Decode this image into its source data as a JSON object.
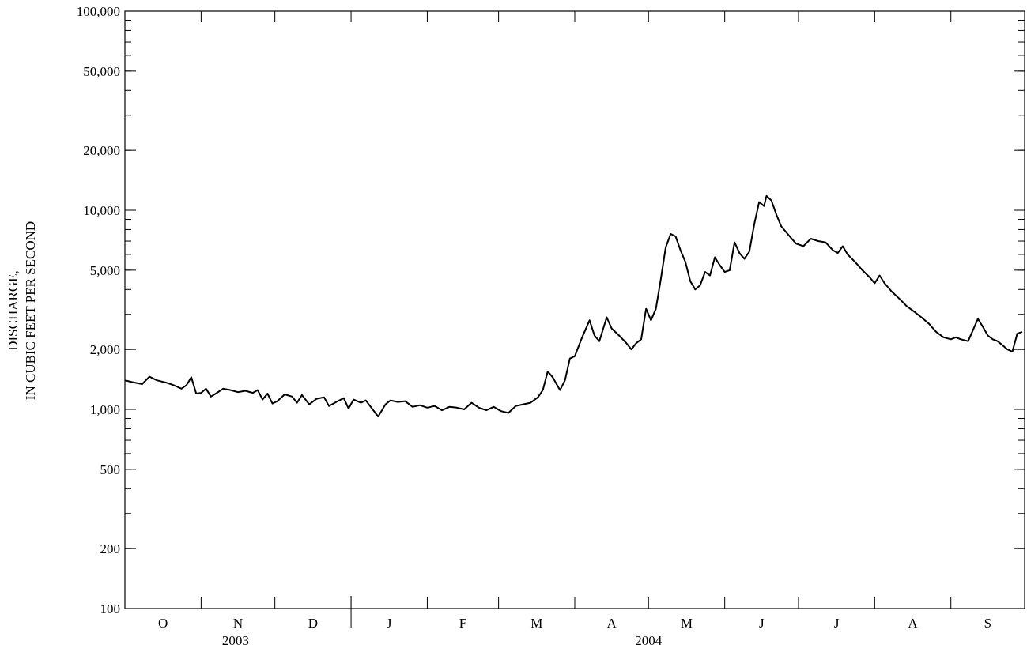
{
  "chart_data": {
    "type": "line",
    "title": "",
    "ylabel": "DISCHARGE, IN CUBIC FEET PER SECOND",
    "ylabel_lines": [
      "DISCHARGE,",
      "IN CUBIC FEET PER SECOND"
    ],
    "yscale": "log",
    "ylim": [
      100,
      100000
    ],
    "xlim": [
      "2003-10-01",
      "2004-09-30"
    ],
    "grid": false,
    "yticks": [
      {
        "value": 100,
        "label": "100"
      },
      {
        "value": 200,
        "label": "200"
      },
      {
        "value": 500,
        "label": "500"
      },
      {
        "value": 1000,
        "label": "1,000"
      },
      {
        "value": 2000,
        "label": "2,000"
      },
      {
        "value": 5000,
        "label": "5,000"
      },
      {
        "value": 10000,
        "label": "10,000"
      },
      {
        "value": 20000,
        "label": "20,000"
      },
      {
        "value": 50000,
        "label": "50,000"
      },
      {
        "value": 100000,
        "label": "100,000"
      }
    ],
    "months": [
      {
        "label": "O",
        "start": "2003-10-01"
      },
      {
        "label": "N",
        "start": "2003-11-01"
      },
      {
        "label": "D",
        "start": "2003-12-01"
      },
      {
        "label": "J",
        "start": "2004-01-01"
      },
      {
        "label": "F",
        "start": "2004-02-01"
      },
      {
        "label": "M",
        "start": "2004-03-01"
      },
      {
        "label": "A",
        "start": "2004-04-01"
      },
      {
        "label": "M",
        "start": "2004-05-01"
      },
      {
        "label": "J",
        "start": "2004-06-01"
      },
      {
        "label": "J",
        "start": "2004-07-01"
      },
      {
        "label": "A",
        "start": "2004-08-01"
      },
      {
        "label": "S",
        "start": "2004-09-01"
      }
    ],
    "year_labels": [
      {
        "label": "2003",
        "center": "2003-11-15"
      },
      {
        "label": "2004",
        "center": "2004-05-01"
      }
    ],
    "year_divider": "2004-01-01",
    "series": [
      {
        "color": "#000000",
        "points": [
          [
            "2003-10-01",
            1400
          ],
          [
            "2003-10-04",
            1370
          ],
          [
            "2003-10-08",
            1340
          ],
          [
            "2003-10-11",
            1460
          ],
          [
            "2003-10-14",
            1400
          ],
          [
            "2003-10-18",
            1360
          ],
          [
            "2003-10-21",
            1320
          ],
          [
            "2003-10-24",
            1270
          ],
          [
            "2003-10-26",
            1320
          ],
          [
            "2003-10-28",
            1450
          ],
          [
            "2003-10-30",
            1200
          ],
          [
            "2003-11-01",
            1210
          ],
          [
            "2003-11-03",
            1270
          ],
          [
            "2003-11-05",
            1160
          ],
          [
            "2003-11-07",
            1200
          ],
          [
            "2003-11-10",
            1270
          ],
          [
            "2003-11-13",
            1250
          ],
          [
            "2003-11-16",
            1220
          ],
          [
            "2003-11-19",
            1240
          ],
          [
            "2003-11-22",
            1210
          ],
          [
            "2003-11-24",
            1250
          ],
          [
            "2003-11-26",
            1120
          ],
          [
            "2003-11-28",
            1200
          ],
          [
            "2003-11-30",
            1070
          ],
          [
            "2003-12-02",
            1100
          ],
          [
            "2003-12-05",
            1190
          ],
          [
            "2003-12-08",
            1160
          ],
          [
            "2003-12-10",
            1080
          ],
          [
            "2003-12-12",
            1180
          ],
          [
            "2003-12-15",
            1060
          ],
          [
            "2003-12-18",
            1130
          ],
          [
            "2003-12-21",
            1150
          ],
          [
            "2003-12-23",
            1040
          ],
          [
            "2003-12-26",
            1090
          ],
          [
            "2003-12-29",
            1140
          ],
          [
            "2003-12-31",
            1010
          ],
          [
            "2004-01-02",
            1120
          ],
          [
            "2004-01-05",
            1080
          ],
          [
            "2004-01-07",
            1110
          ],
          [
            "2004-01-09",
            1030
          ],
          [
            "2004-01-12",
            920
          ],
          [
            "2004-01-15",
            1060
          ],
          [
            "2004-01-17",
            1110
          ],
          [
            "2004-01-20",
            1090
          ],
          [
            "2004-01-23",
            1100
          ],
          [
            "2004-01-26",
            1030
          ],
          [
            "2004-01-29",
            1050
          ],
          [
            "2004-02-01",
            1020
          ],
          [
            "2004-02-04",
            1040
          ],
          [
            "2004-02-07",
            990
          ],
          [
            "2004-02-10",
            1030
          ],
          [
            "2004-02-13",
            1020
          ],
          [
            "2004-02-16",
            1000
          ],
          [
            "2004-02-19",
            1080
          ],
          [
            "2004-02-22",
            1020
          ],
          [
            "2004-02-25",
            990
          ],
          [
            "2004-02-28",
            1030
          ],
          [
            "2004-03-02",
            980
          ],
          [
            "2004-03-05",
            960
          ],
          [
            "2004-03-08",
            1040
          ],
          [
            "2004-03-11",
            1060
          ],
          [
            "2004-03-14",
            1080
          ],
          [
            "2004-03-17",
            1150
          ],
          [
            "2004-03-19",
            1250
          ],
          [
            "2004-03-21",
            1550
          ],
          [
            "2004-03-23",
            1450
          ],
          [
            "2004-03-26",
            1250
          ],
          [
            "2004-03-28",
            1400
          ],
          [
            "2004-03-30",
            1800
          ],
          [
            "2004-04-01",
            1850
          ],
          [
            "2004-04-04",
            2300
          ],
          [
            "2004-04-07",
            2800
          ],
          [
            "2004-04-09",
            2350
          ],
          [
            "2004-04-11",
            2200
          ],
          [
            "2004-04-14",
            2900
          ],
          [
            "2004-04-16",
            2550
          ],
          [
            "2004-04-19",
            2350
          ],
          [
            "2004-04-22",
            2150
          ],
          [
            "2004-04-24",
            2000
          ],
          [
            "2004-04-26",
            2150
          ],
          [
            "2004-04-28",
            2250
          ],
          [
            "2004-04-30",
            3200
          ],
          [
            "2004-05-02",
            2800
          ],
          [
            "2004-05-04",
            3200
          ],
          [
            "2004-05-06",
            4500
          ],
          [
            "2004-05-08",
            6500
          ],
          [
            "2004-05-10",
            7600
          ],
          [
            "2004-05-12",
            7400
          ],
          [
            "2004-05-14",
            6300
          ],
          [
            "2004-05-16",
            5500
          ],
          [
            "2004-05-18",
            4400
          ],
          [
            "2004-05-20",
            4000
          ],
          [
            "2004-05-22",
            4200
          ],
          [
            "2004-05-24",
            4900
          ],
          [
            "2004-05-26",
            4700
          ],
          [
            "2004-05-28",
            5800
          ],
          [
            "2004-05-30",
            5300
          ],
          [
            "2004-06-01",
            4900
          ],
          [
            "2004-06-03",
            5000
          ],
          [
            "2004-06-05",
            6900
          ],
          [
            "2004-06-07",
            6100
          ],
          [
            "2004-06-09",
            5700
          ],
          [
            "2004-06-11",
            6200
          ],
          [
            "2004-06-13",
            8500
          ],
          [
            "2004-06-15",
            11000
          ],
          [
            "2004-06-17",
            10500
          ],
          [
            "2004-06-18",
            11800
          ],
          [
            "2004-06-20",
            11200
          ],
          [
            "2004-06-22",
            9500
          ],
          [
            "2004-06-24",
            8300
          ],
          [
            "2004-06-27",
            7500
          ],
          [
            "2004-06-30",
            6800
          ],
          [
            "2004-07-03",
            6600
          ],
          [
            "2004-07-06",
            7200
          ],
          [
            "2004-07-09",
            7000
          ],
          [
            "2004-07-12",
            6900
          ],
          [
            "2004-07-15",
            6300
          ],
          [
            "2004-07-17",
            6100
          ],
          [
            "2004-07-19",
            6600
          ],
          [
            "2004-07-21",
            6000
          ],
          [
            "2004-07-24",
            5500
          ],
          [
            "2004-07-27",
            5000
          ],
          [
            "2004-07-30",
            4600
          ],
          [
            "2004-08-01",
            4300
          ],
          [
            "2004-08-03",
            4700
          ],
          [
            "2004-08-05",
            4300
          ],
          [
            "2004-08-08",
            3900
          ],
          [
            "2004-08-11",
            3600
          ],
          [
            "2004-08-14",
            3300
          ],
          [
            "2004-08-17",
            3100
          ],
          [
            "2004-08-20",
            2900
          ],
          [
            "2004-08-23",
            2700
          ],
          [
            "2004-08-26",
            2450
          ],
          [
            "2004-08-29",
            2300
          ],
          [
            "2004-09-01",
            2250
          ],
          [
            "2004-09-03",
            2300
          ],
          [
            "2004-09-05",
            2250
          ],
          [
            "2004-09-08",
            2200
          ],
          [
            "2004-09-10",
            2500
          ],
          [
            "2004-09-12",
            2850
          ],
          [
            "2004-09-14",
            2600
          ],
          [
            "2004-09-16",
            2350
          ],
          [
            "2004-09-18",
            2250
          ],
          [
            "2004-09-20",
            2200
          ],
          [
            "2004-09-22",
            2100
          ],
          [
            "2004-09-24",
            2000
          ],
          [
            "2004-09-26",
            1950
          ],
          [
            "2004-09-28",
            2400
          ],
          [
            "2004-09-30",
            2450
          ]
        ]
      }
    ]
  }
}
